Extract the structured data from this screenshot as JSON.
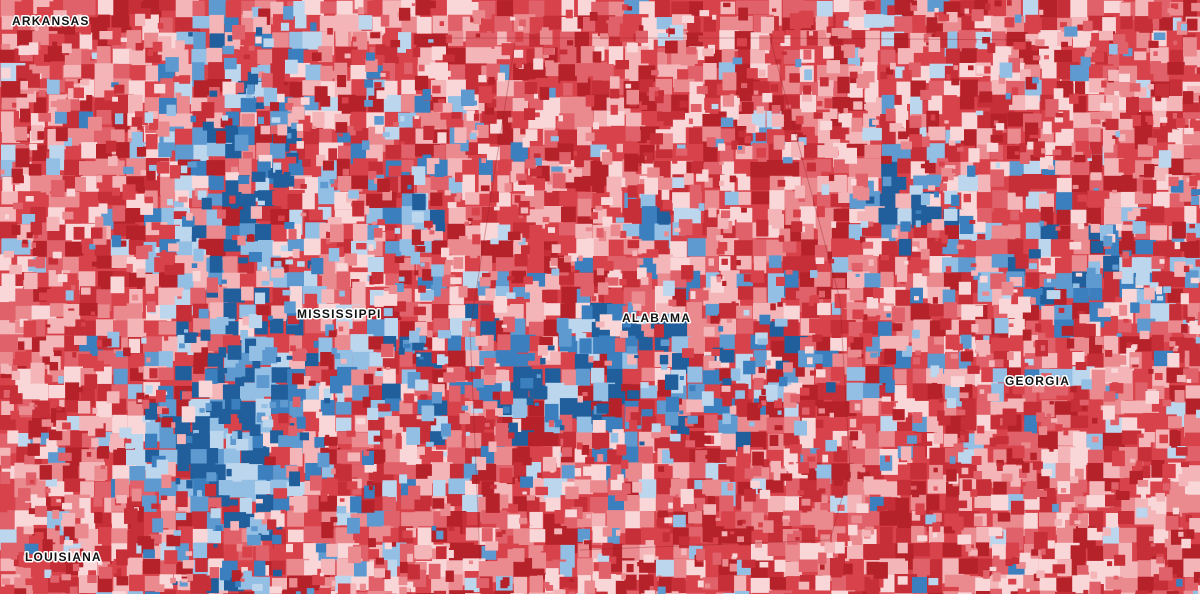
{
  "state_labels": [
    "ARKANSAS",
    "MISSISSIPPI",
    "ALABAMA",
    "GEORGIA",
    "LOUISIANA"
  ]
}
